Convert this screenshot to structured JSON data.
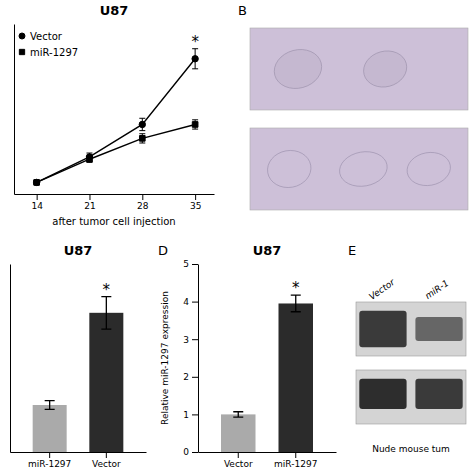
{
  "chart_data": [
    {
      "type": "line",
      "title": "U87",
      "xlabel": "after tumor cell injection",
      "x": [
        14,
        21,
        28,
        35
      ],
      "xlim": [
        11,
        37.5
      ],
      "xticks": [
        14,
        21,
        28,
        35
      ],
      "ylim": [
        -0.1,
        2.1
      ],
      "yticks": [],
      "tick_labels": "x",
      "legend": "upper left",
      "series": [
        {
          "name": "Vector",
          "color": "#000000",
          "marker": "circle",
          "values": [
            0.05,
            0.38,
            0.8,
            1.65
          ],
          "errors": [
            0.02,
            0.05,
            0.08,
            0.13
          ]
        },
        {
          "name": "miR-1297",
          "color": "#000000",
          "marker": "square",
          "values": [
            0.05,
            0.35,
            0.62,
            0.8
          ],
          "errors": [
            0.02,
            0.04,
            0.06,
            0.06
          ]
        }
      ],
      "annotations": [
        {
          "text": "*",
          "x": 35
        }
      ]
    },
    {
      "type": "image",
      "title": "B",
      "color": "#cdc0d8"
    },
    {
      "type": "bar",
      "title": "U87",
      "categories": [
        "miR-1297",
        "Vector"
      ],
      "values": [
        1.3,
        3.85
      ],
      "errors": [
        0.12,
        0.45
      ],
      "colors": [
        "#aaaaaa",
        "#2b2b2b"
      ],
      "ylim": [
        0,
        5.2
      ],
      "yticks": [],
      "tick_labels": "x",
      "annotations": [
        {
          "text": "*",
          "x": "Vector"
        }
      ]
    },
    {
      "type": "bar",
      "title": "U87",
      "categories": [
        "Vector",
        "miR-1297"
      ],
      "values": [
        1.0,
        3.95
      ],
      "errors": [
        0.07,
        0.22
      ],
      "colors": [
        "#aaaaaa",
        "#2b2b2b"
      ],
      "ylabel": "Relative miR-1297 expression",
      "ylim": [
        0,
        5
      ],
      "yticks": [
        0,
        1,
        2,
        3,
        4,
        5
      ],
      "annotations": [
        {
          "text": "D"
        },
        {
          "text": "*",
          "x": "miR-1297"
        }
      ]
    },
    {
      "type": "blot",
      "title": "E",
      "categories": [
        "Vector",
        "miR-1"
      ],
      "xlabel": "Nude mouse tum"
    }
  ]
}
